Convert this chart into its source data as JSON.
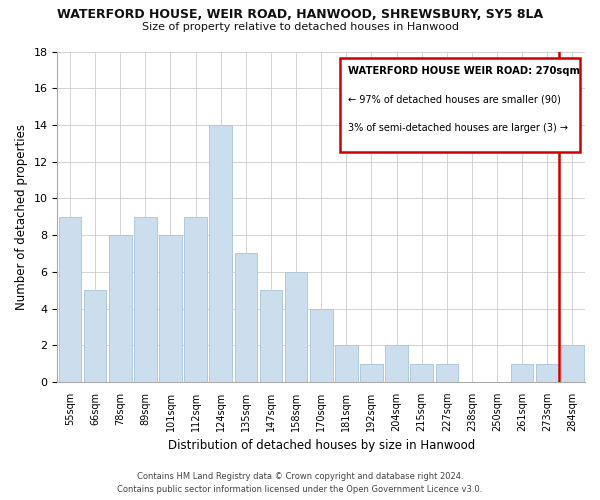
{
  "title": "WATERFORD HOUSE, WEIR ROAD, HANWOOD, SHREWSBURY, SY5 8LA",
  "subtitle": "Size of property relative to detached houses in Hanwood",
  "xlabel": "Distribution of detached houses by size in Hanwood",
  "ylabel": "Number of detached properties",
  "bar_labels": [
    "55sqm",
    "66sqm",
    "78sqm",
    "89sqm",
    "101sqm",
    "112sqm",
    "124sqm",
    "135sqm",
    "147sqm",
    "158sqm",
    "170sqm",
    "181sqm",
    "192sqm",
    "204sqm",
    "215sqm",
    "227sqm",
    "238sqm",
    "250sqm",
    "261sqm",
    "273sqm",
    "284sqm"
  ],
  "bar_values": [
    9,
    5,
    8,
    9,
    8,
    9,
    14,
    7,
    5,
    6,
    4,
    2,
    1,
    2,
    1,
    1,
    0,
    0,
    1,
    1,
    2
  ],
  "bar_color": "#ccdded",
  "bar_edge_color": "#b0c8dc",
  "ylim": [
    0,
    18
  ],
  "yticks": [
    0,
    2,
    4,
    6,
    8,
    10,
    12,
    14,
    16,
    18
  ],
  "grid_color": "#cccccc",
  "vline_bar_index": 19,
  "vline_color": "#cc0000",
  "annotation_title": "WATERFORD HOUSE WEIR ROAD: 270sqm",
  "annotation_line1": "← 97% of detached houses are smaller (90)",
  "annotation_line2": "3% of semi-detached houses are larger (3) →",
  "annotation_box_color": "#ffffff",
  "annotation_box_edge": "#cc0000",
  "footer1": "Contains HM Land Registry data © Crown copyright and database right 2024.",
  "footer2": "Contains public sector information licensed under the Open Government Licence v3.0."
}
